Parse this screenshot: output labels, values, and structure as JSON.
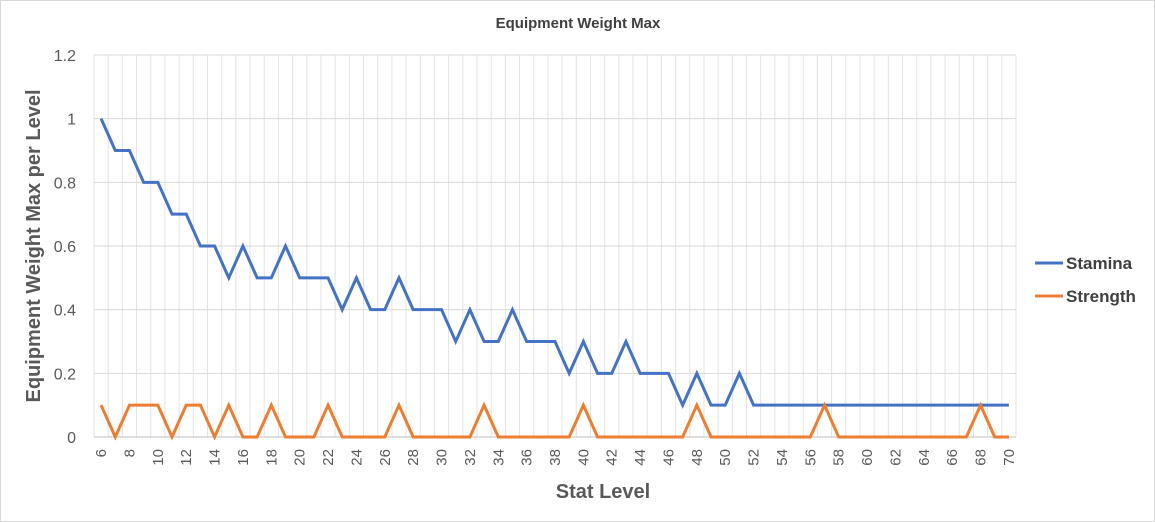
{
  "chart_data": {
    "type": "line",
    "title": "Equipment Weight Max",
    "xlabel": "Stat Level",
    "ylabel": "Equipment Weight Max per Level",
    "ylim": [
      0,
      1.2
    ],
    "y_ticks": [
      "0",
      "0.2",
      "0.4",
      "0.6",
      "0.8",
      "1",
      "1.2"
    ],
    "x_ticks": [
      "6",
      "8",
      "10",
      "12",
      "14",
      "16",
      "18",
      "20",
      "22",
      "24",
      "26",
      "28",
      "30",
      "32",
      "34",
      "36",
      "38",
      "40",
      "42",
      "44",
      "46",
      "48",
      "50",
      "52",
      "54",
      "56",
      "58",
      "60",
      "62",
      "64",
      "66",
      "68",
      "70"
    ],
    "x": [
      6,
      7,
      8,
      9,
      10,
      11,
      12,
      13,
      14,
      15,
      16,
      17,
      18,
      19,
      20,
      21,
      22,
      23,
      24,
      25,
      26,
      27,
      28,
      29,
      30,
      31,
      32,
      33,
      34,
      35,
      36,
      37,
      38,
      39,
      40,
      41,
      42,
      43,
      44,
      45,
      46,
      47,
      48,
      49,
      50,
      51,
      52,
      53,
      54,
      55,
      56,
      57,
      58,
      59,
      60,
      61,
      62,
      63,
      64,
      65,
      66,
      67,
      68,
      69,
      70
    ],
    "grid": "vertical-and-horizontal",
    "legend_position": "right",
    "series": [
      {
        "name": "Stamina",
        "color": "#4472c4",
        "values": [
          1,
          0.9,
          0.9,
          0.8,
          0.8,
          0.7,
          0.7,
          0.6,
          0.6,
          0.5,
          0.6,
          0.5,
          0.5,
          0.6,
          0.5,
          0.5,
          0.5,
          0.4,
          0.5,
          0.4,
          0.4,
          0.5,
          0.4,
          0.4,
          0.4,
          0.3,
          0.4,
          0.3,
          0.3,
          0.4,
          0.3,
          0.3,
          0.3,
          0.2,
          0.3,
          0.2,
          0.2,
          0.3,
          0.2,
          0.2,
          0.2,
          0.1,
          0.2,
          0.1,
          0.1,
          0.2,
          0.1,
          0.1,
          0.1,
          0.1,
          0.1,
          0.1,
          0.1,
          0.1,
          0.1,
          0.1,
          0.1,
          0.1,
          0.1,
          0.1,
          0.1,
          0.1,
          0.1,
          0.1,
          0.1
        ]
      },
      {
        "name": "Strength",
        "color": "#ed7d31",
        "values": [
          0.1,
          0,
          0.1,
          0.1,
          0.1,
          0,
          0.1,
          0.1,
          0,
          0.1,
          0,
          0,
          0.1,
          0,
          0,
          0,
          0.1,
          0,
          0,
          0,
          0,
          0.1,
          0,
          0,
          0,
          0,
          0,
          0.1,
          0,
          0,
          0,
          0,
          0,
          0,
          0.1,
          0,
          0,
          0,
          0,
          0,
          0,
          0,
          0.1,
          0,
          0,
          0,
          0,
          0,
          0,
          0,
          0,
          0.1,
          0,
          0,
          0,
          0,
          0,
          0,
          0,
          0,
          0,
          0,
          0.1,
          0,
          0
        ]
      }
    ]
  }
}
